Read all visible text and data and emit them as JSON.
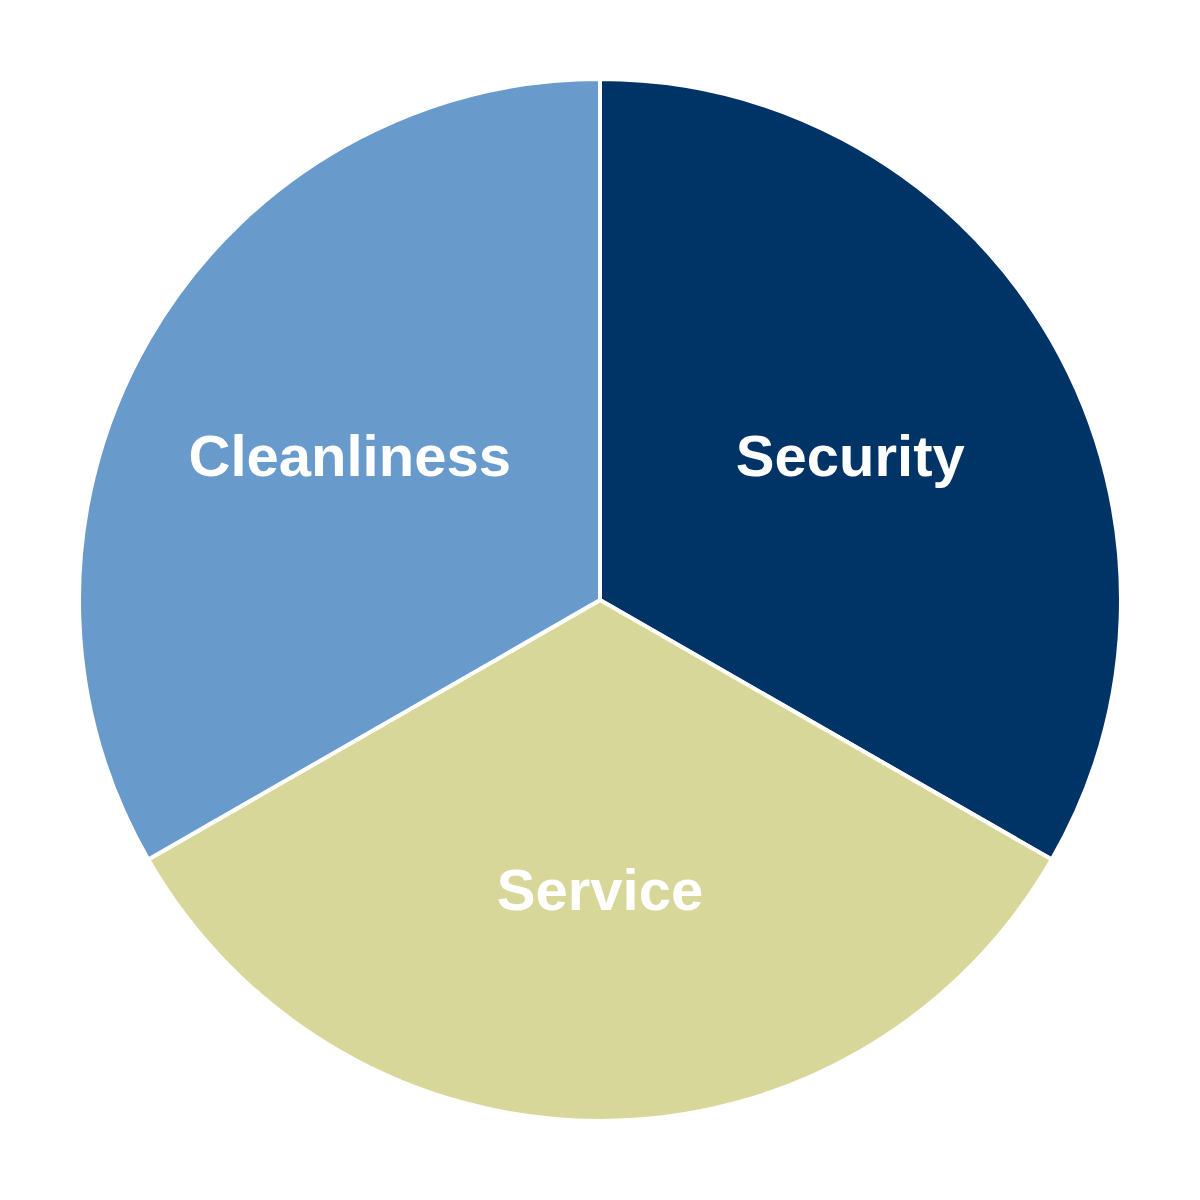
{
  "chart_data": {
    "type": "pie",
    "categories": [
      "Security",
      "Service",
      "Cleanliness"
    ],
    "values": [
      33.3,
      33.4,
      33.3
    ],
    "colors": [
      "#003366",
      "#d8d79a",
      "#689bcc"
    ]
  }
}
